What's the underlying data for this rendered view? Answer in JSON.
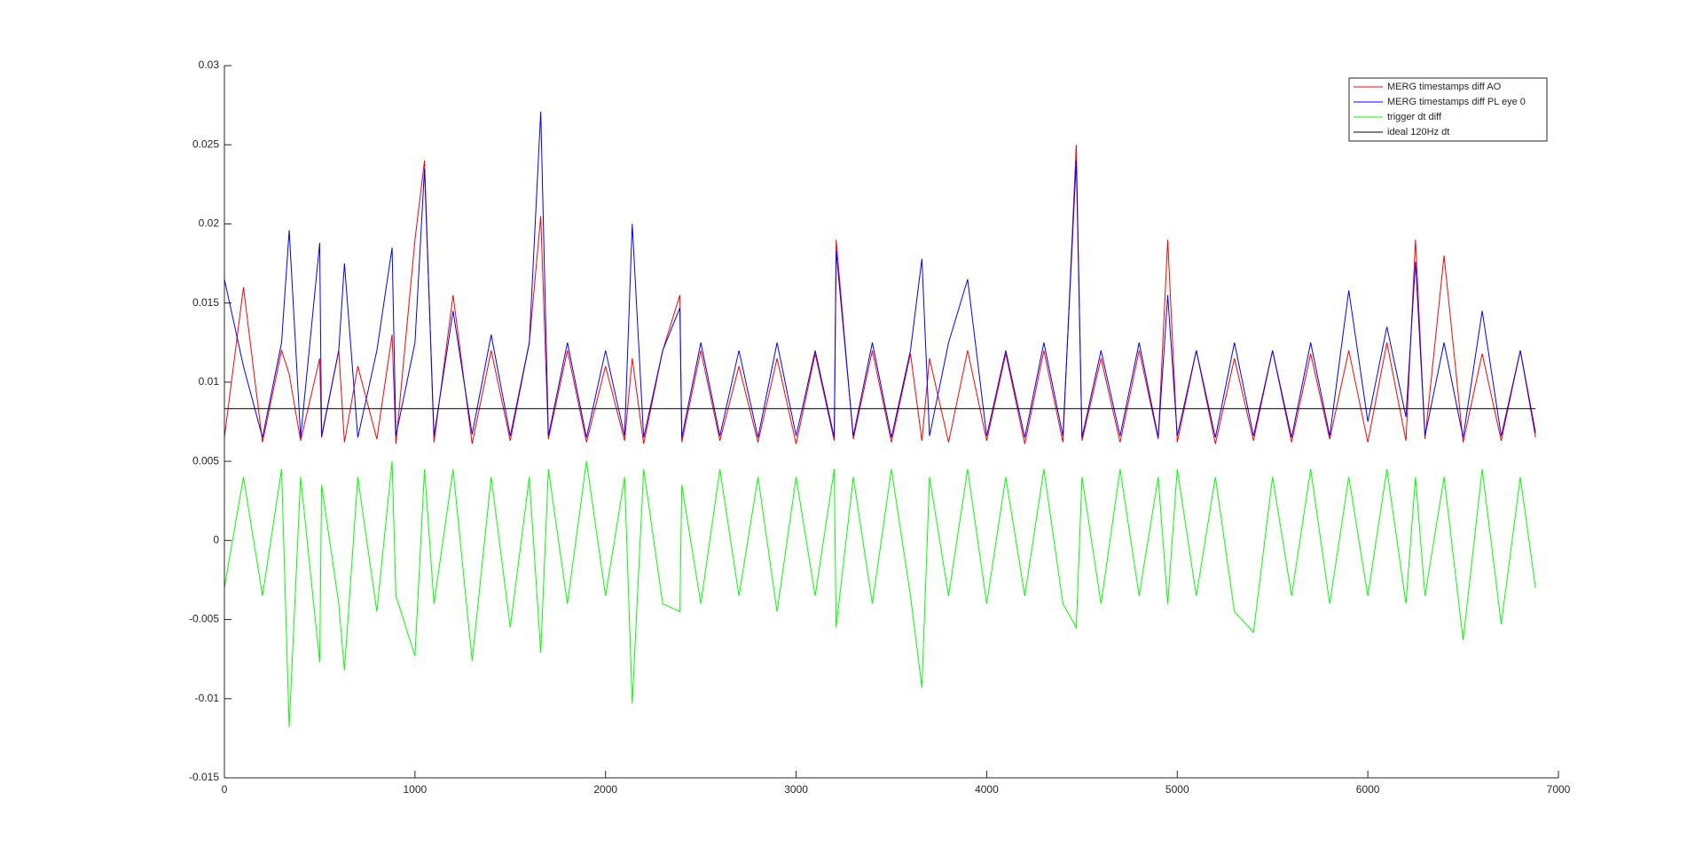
{
  "chart_data": {
    "type": "line",
    "x": [
      0,
      100,
      200,
      300,
      340,
      400,
      500,
      510,
      600,
      630,
      700,
      800,
      880,
      900,
      1000,
      1050,
      1100,
      1200,
      1300,
      1400,
      1500,
      1600,
      1660,
      1700,
      1800,
      1900,
      2000,
      2100,
      2140,
      2200,
      2300,
      2390,
      2400,
      2500,
      2600,
      2700,
      2800,
      2900,
      3000,
      3100,
      3200,
      3210,
      3300,
      3400,
      3500,
      3600,
      3660,
      3700,
      3800,
      3900,
      4000,
      4100,
      4200,
      4300,
      4400,
      4470,
      4500,
      4600,
      4700,
      4800,
      4900,
      4950,
      5000,
      5100,
      5200,
      5300,
      5400,
      5500,
      5600,
      5700,
      5800,
      5900,
      6000,
      6100,
      6200,
      6250,
      6300,
      6400,
      6500,
      6600,
      6700,
      6800,
      6880
    ],
    "series": [
      {
        "name": "MERG timestamps diff AO",
        "color": "#ff0000",
        "values": [
          0.0065,
          0.016,
          0.0062,
          0.012,
          0.0105,
          0.0063,
          0.0115,
          0.0065,
          0.012,
          0.0062,
          0.011,
          0.0064,
          0.013,
          0.0061,
          0.019,
          0.024,
          0.0062,
          0.0155,
          0.0061,
          0.012,
          0.0063,
          0.0125,
          0.0205,
          0.0064,
          0.012,
          0.0062,
          0.011,
          0.0063,
          0.0115,
          0.0061,
          0.012,
          0.0155,
          0.0062,
          0.012,
          0.0063,
          0.011,
          0.0062,
          0.0115,
          0.0061,
          0.0118,
          0.0063,
          0.019,
          0.0064,
          0.012,
          0.0062,
          0.0118,
          0.0063,
          0.0115,
          0.0062,
          0.012,
          0.0063,
          0.0118,
          0.0061,
          0.012,
          0.0062,
          0.025,
          0.0063,
          0.0115,
          0.0062,
          0.012,
          0.0064,
          0.019,
          0.0062,
          0.012,
          0.0061,
          0.0115,
          0.0063,
          0.012,
          0.0062,
          0.0118,
          0.0064,
          0.012,
          0.0062,
          0.0125,
          0.0063,
          0.019,
          0.0064,
          0.018,
          0.0062,
          0.0118,
          0.0063,
          0.012,
          0.0065
        ]
      },
      {
        "name": "MERG timestamps diff PL eye 0",
        "color": "#0000ff",
        "values": [
          0.0165,
          0.011,
          0.0065,
          0.0125,
          0.0196,
          0.0065,
          0.0188,
          0.0066,
          0.012,
          0.0175,
          0.0065,
          0.012,
          0.0185,
          0.0066,
          0.0125,
          0.0235,
          0.0066,
          0.0145,
          0.0067,
          0.013,
          0.0066,
          0.0125,
          0.0271,
          0.0066,
          0.0125,
          0.0065,
          0.012,
          0.0066,
          0.02,
          0.0065,
          0.012,
          0.0147,
          0.0065,
          0.0125,
          0.0066,
          0.012,
          0.0065,
          0.0125,
          0.0066,
          0.012,
          0.0065,
          0.0183,
          0.0066,
          0.0125,
          0.0065,
          0.012,
          0.0178,
          0.0066,
          0.0125,
          0.0165,
          0.0066,
          0.012,
          0.0065,
          0.0125,
          0.0066,
          0.024,
          0.0065,
          0.012,
          0.0066,
          0.0125,
          0.0065,
          0.0155,
          0.0066,
          0.012,
          0.0065,
          0.0125,
          0.0066,
          0.012,
          0.0065,
          0.0125,
          0.0066,
          0.0158,
          0.0075,
          0.0135,
          0.0078,
          0.0176,
          0.0066,
          0.0125,
          0.0065,
          0.0145,
          0.0066,
          0.012,
          0.0068
        ]
      },
      {
        "name": "trigger dt diff",
        "color": "#00ff00",
        "values": [
          -0.003,
          0.004,
          -0.0035,
          0.0045,
          -0.0118,
          0.004,
          -0.0077,
          0.0035,
          -0.004,
          -0.0082,
          0.004,
          -0.0045,
          0.005,
          -0.0035,
          -0.0073,
          0.0045,
          -0.004,
          0.0045,
          -0.0076,
          0.004,
          -0.0055,
          0.004,
          -0.0071,
          0.0045,
          -0.004,
          0.005,
          -0.0035,
          0.004,
          -0.0103,
          0.0045,
          -0.004,
          -0.0045,
          0.0035,
          -0.004,
          0.0045,
          -0.0035,
          0.004,
          -0.0045,
          0.004,
          -0.0035,
          0.0045,
          -0.0055,
          0.004,
          -0.004,
          0.0045,
          -0.0035,
          -0.0093,
          0.004,
          -0.0035,
          0.0045,
          -0.004,
          0.004,
          -0.0035,
          0.0045,
          -0.004,
          -0.0055,
          0.004,
          -0.004,
          0.0045,
          -0.0035,
          0.004,
          -0.004,
          0.0045,
          -0.0035,
          0.004,
          -0.0045,
          -0.0058,
          0.004,
          -0.0035,
          0.0045,
          -0.004,
          0.004,
          -0.0035,
          0.0045,
          -0.004,
          0.004,
          -0.0035,
          0.004,
          -0.0063,
          0.0045,
          -0.0053,
          0.004,
          -0.003
        ]
      },
      {
        "name": "ideal 120Hz dt",
        "color": "#000000",
        "x": [
          0,
          6880
        ],
        "values": [
          0.00833,
          0.00833
        ]
      }
    ],
    "xlim": [
      0,
      7000
    ],
    "xticks": [
      0,
      1000,
      2000,
      3000,
      4000,
      5000,
      6000,
      7000
    ],
    "ylim": [
      -0.015,
      0.03
    ],
    "yticks": [
      -0.015,
      -0.01,
      -0.005,
      0,
      0.005,
      0.01,
      0.015,
      0.02,
      0.025,
      0.03
    ],
    "grid": false,
    "legend": "top-right"
  }
}
